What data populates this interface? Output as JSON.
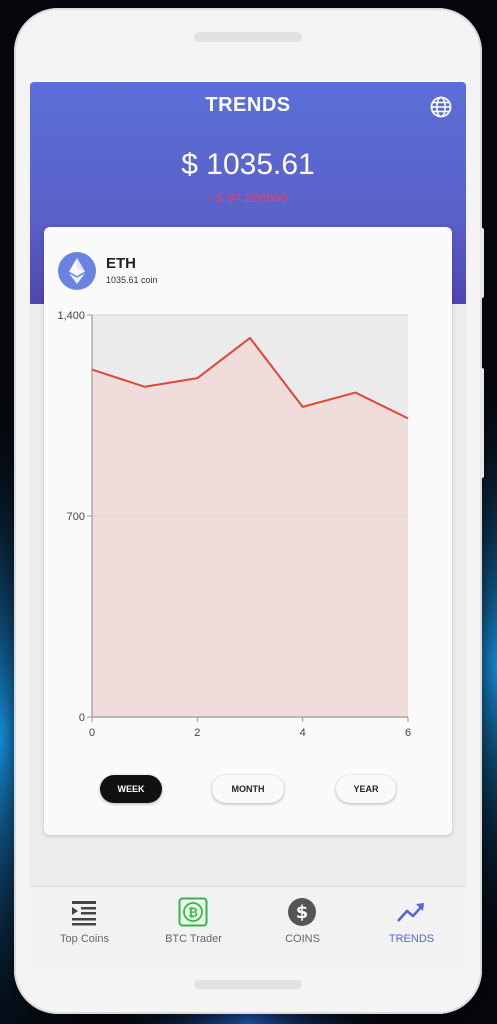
{
  "header": {
    "title": "TRENDS",
    "price": "$ 1035.61",
    "change": "- $ 94.288669"
  },
  "coin": {
    "name": "ETH",
    "sub": "1035.61 coin",
    "icon": "ethereum-icon"
  },
  "chart_data": {
    "type": "area",
    "x": [
      0,
      1,
      2,
      3,
      4,
      5,
      6
    ],
    "y": [
      1210,
      1150,
      1180,
      1320,
      1080,
      1130,
      1040
    ],
    "xlim": [
      0,
      6
    ],
    "ylim": [
      0,
      1400
    ],
    "x_ticks": [
      "0",
      "2",
      "4",
      "6"
    ],
    "x_tick_values": [
      0,
      2,
      4,
      6
    ],
    "y_ticks": [
      "0",
      "700",
      "1,400"
    ],
    "y_tick_values": [
      0,
      700,
      1400
    ],
    "line_color": "#e0453a",
    "fill_color": "#f2dada",
    "grid": true
  },
  "ranges": {
    "week": "WEEK",
    "month": "MONTH",
    "year": "YEAR",
    "selected": "week"
  },
  "nav": {
    "items": [
      {
        "label": "Top Coins",
        "icon": "list-icon"
      },
      {
        "label": "BTC Trader",
        "icon": "bitcoin-icon"
      },
      {
        "label": "COINS",
        "icon": "dollar-icon"
      },
      {
        "label": "TRENDS",
        "icon": "trending-up-icon"
      }
    ],
    "active": "TRENDS"
  },
  "colors": {
    "header": "#5b6fd8",
    "accent": "#5566d6",
    "negative": "#e0456a"
  }
}
